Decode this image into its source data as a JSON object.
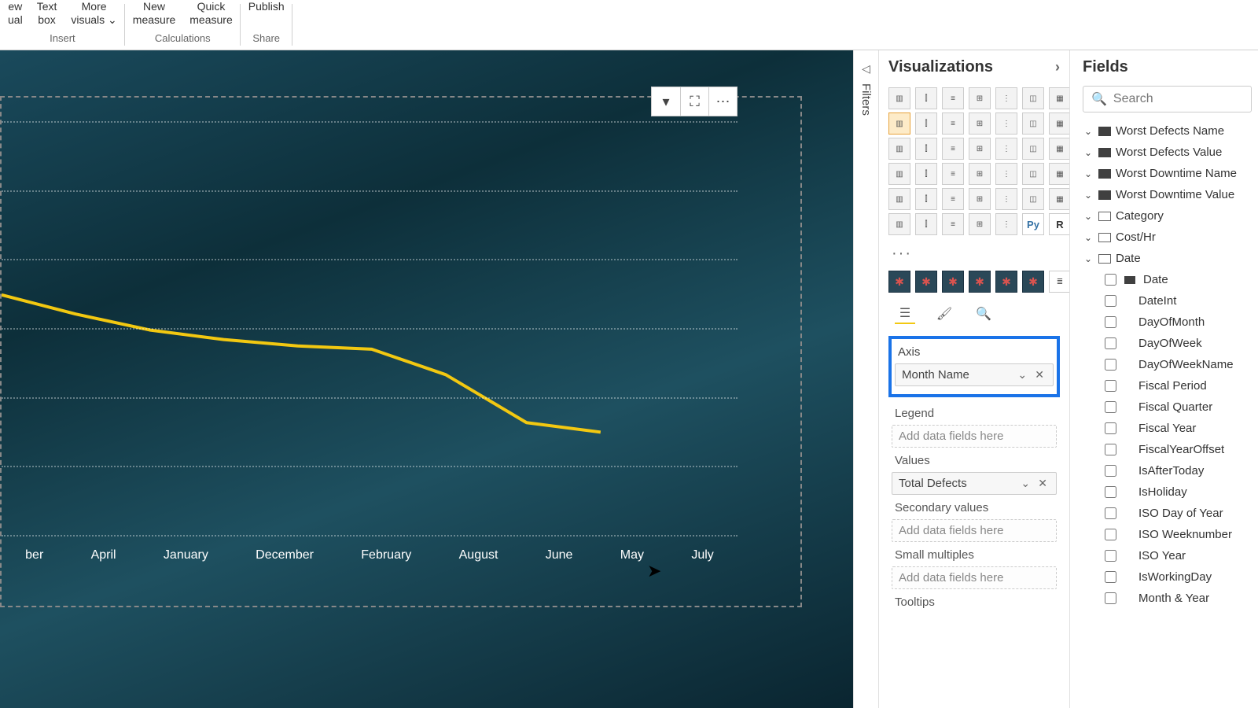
{
  "ribbon": {
    "groups": [
      {
        "label": "Insert",
        "buttons": [
          "ew\nual",
          "Text\nbox",
          "More\nvisuals ⌄"
        ]
      },
      {
        "label": "Calculations",
        "buttons": [
          "New\nmeasure",
          "Quick\nmeasure"
        ]
      },
      {
        "label": "Share",
        "buttons": [
          "Publish"
        ]
      }
    ]
  },
  "chart": {
    "line_color": "#f2c811",
    "x_labels": [
      "ber",
      "April",
      "January",
      "December",
      "February",
      "August",
      "June",
      "May",
      "July"
    ],
    "grid_rows": 6,
    "points": [
      [
        0.0,
        0.47
      ],
      [
        0.11,
        0.53
      ],
      [
        0.22,
        0.58
      ],
      [
        0.33,
        0.61
      ],
      [
        0.44,
        0.63
      ],
      [
        0.55,
        0.64
      ],
      [
        0.66,
        0.72
      ],
      [
        0.78,
        0.87
      ],
      [
        0.89,
        0.9
      ]
    ],
    "actions": [
      "filter",
      "focus",
      "more"
    ]
  },
  "filters_tab": "Filters",
  "viz": {
    "title": "Visualizations",
    "custom_count": 6,
    "ellipsis": "···",
    "wells": {
      "axis": {
        "label": "Axis",
        "value": "Month Name"
      },
      "legend": {
        "label": "Legend",
        "placeholder": "Add data fields here"
      },
      "values": {
        "label": "Values",
        "value": "Total Defects"
      },
      "secondary": {
        "label": "Secondary values",
        "placeholder": "Add data fields here"
      },
      "small": {
        "label": "Small multiples",
        "placeholder": "Add data fields here"
      },
      "tooltips": {
        "label": "Tooltips"
      }
    }
  },
  "fields": {
    "title": "Fields",
    "search_placeholder": "Search",
    "tables": [
      {
        "name": "Worst Defects Name",
        "dark": true
      },
      {
        "name": "Worst Defects Value",
        "dark": true
      },
      {
        "name": "Worst Downtime Name",
        "dark": true
      },
      {
        "name": "Worst Downtime Value",
        "dark": true
      },
      {
        "name": "Category",
        "dark": false
      },
      {
        "name": "Cost/Hr",
        "dark": false
      },
      {
        "name": "Date",
        "dark": false,
        "expanded": true
      }
    ],
    "date_fields": [
      "Date",
      "DateInt",
      "DayOfMonth",
      "DayOfWeek",
      "DayOfWeekName",
      "Fiscal Period",
      "Fiscal Quarter",
      "Fiscal Year",
      "FiscalYearOffset",
      "IsAfterToday",
      "IsHoliday",
      "ISO Day of Year",
      "ISO Weeknumber",
      "ISO Year",
      "IsWorkingDay",
      "Month & Year"
    ]
  }
}
